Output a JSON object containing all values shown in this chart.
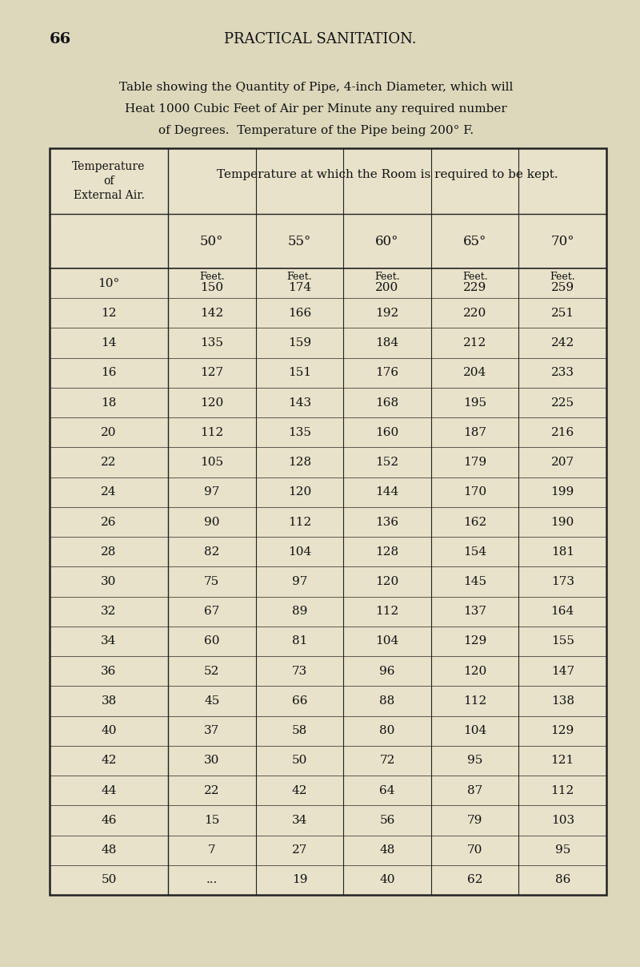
{
  "page_number": "66",
  "page_header": "PRACTICAL SANITATION.",
  "title_lines": [
    "Table showing the Quantity of Pipe, 4-inch Diameter, which will",
    "Heat 1000 Cubic Feet of Air per Minute any required number",
    "of Degrees.  Temperature of the Pipe being 200° F."
  ],
  "col_header_main": "Temperature at which the Room is required to be kept.",
  "row_header_label": [
    "Temperature",
    "of",
    "External Air."
  ],
  "col_temps": [
    "50°",
    "55°",
    "60°",
    "65°",
    "70°"
  ],
  "col_unit": "Feet.",
  "external_air_temps": [
    "10°",
    "12",
    "14",
    "16",
    "18",
    "20",
    "22",
    "24",
    "26",
    "28",
    "30",
    "32",
    "34",
    "36",
    "38",
    "40",
    "42",
    "44",
    "46",
    "48",
    "50"
  ],
  "data": {
    "50": [
      "150",
      "142",
      "135",
      "127",
      "120",
      "112",
      "105",
      "97",
      "90",
      "82",
      "75",
      "67",
      "60",
      "52",
      "45",
      "37",
      "30",
      "22",
      "15",
      "7",
      "..."
    ],
    "55": [
      "174",
      "166",
      "159",
      "151",
      "143",
      "135",
      "128",
      "120",
      "112",
      "104",
      "97",
      "89",
      "81",
      "73",
      "66",
      "58",
      "50",
      "42",
      "34",
      "27",
      "19"
    ],
    "60": [
      "200",
      "192",
      "184",
      "176",
      "168",
      "160",
      "152",
      "144",
      "136",
      "128",
      "120",
      "112",
      "104",
      "96",
      "88",
      "80",
      "72",
      "64",
      "56",
      "48",
      "40"
    ],
    "65": [
      "229",
      "220",
      "212",
      "204",
      "195",
      "187",
      "179",
      "170",
      "162",
      "154",
      "145",
      "137",
      "129",
      "120",
      "112",
      "104",
      "95",
      "87",
      "79",
      "70",
      "62"
    ],
    "70": [
      "259",
      "251",
      "242",
      "233",
      "225",
      "216",
      "207",
      "199",
      "190",
      "181",
      "173",
      "164",
      "155",
      "147",
      "138",
      "129",
      "121",
      "112",
      "103",
      "95",
      "86"
    ]
  },
  "bg_color": "#ddd8bc",
  "table_bg": "#e8e2ca",
  "line_color": "#222222",
  "text_color": "#111111"
}
